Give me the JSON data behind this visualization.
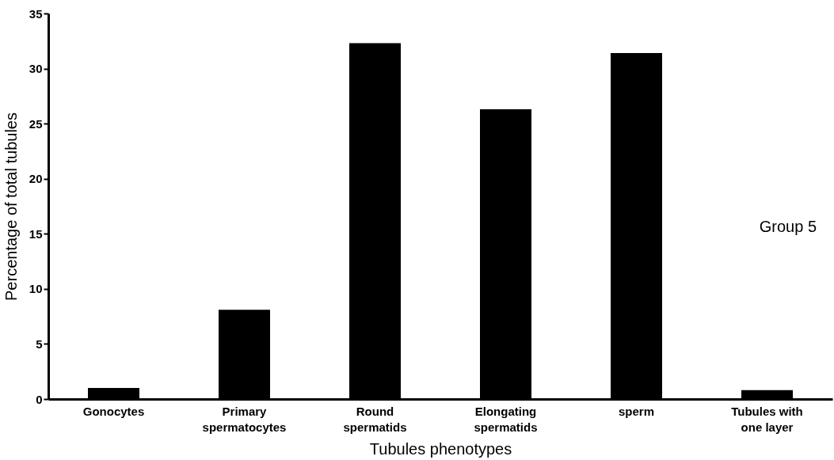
{
  "chart_data": {
    "type": "bar",
    "xlabel": "Tubules phenotypes",
    "ylabel": "Percentage of total  tubules",
    "categories": [
      "Gonocytes",
      "Primary spermatocytes",
      "Round spermatids",
      "Elongating spermatids",
      "sperm",
      "Tubules with one layer"
    ],
    "values": [
      1.0,
      8.1,
      32.3,
      26.3,
      31.4,
      0.8
    ],
    "color": "#000000",
    "ylim": [
      0,
      35
    ],
    "yticks": [
      0,
      5,
      10,
      15,
      20,
      25,
      30,
      35
    ],
    "grid": false,
    "annotations": [
      "Group 5"
    ]
  }
}
